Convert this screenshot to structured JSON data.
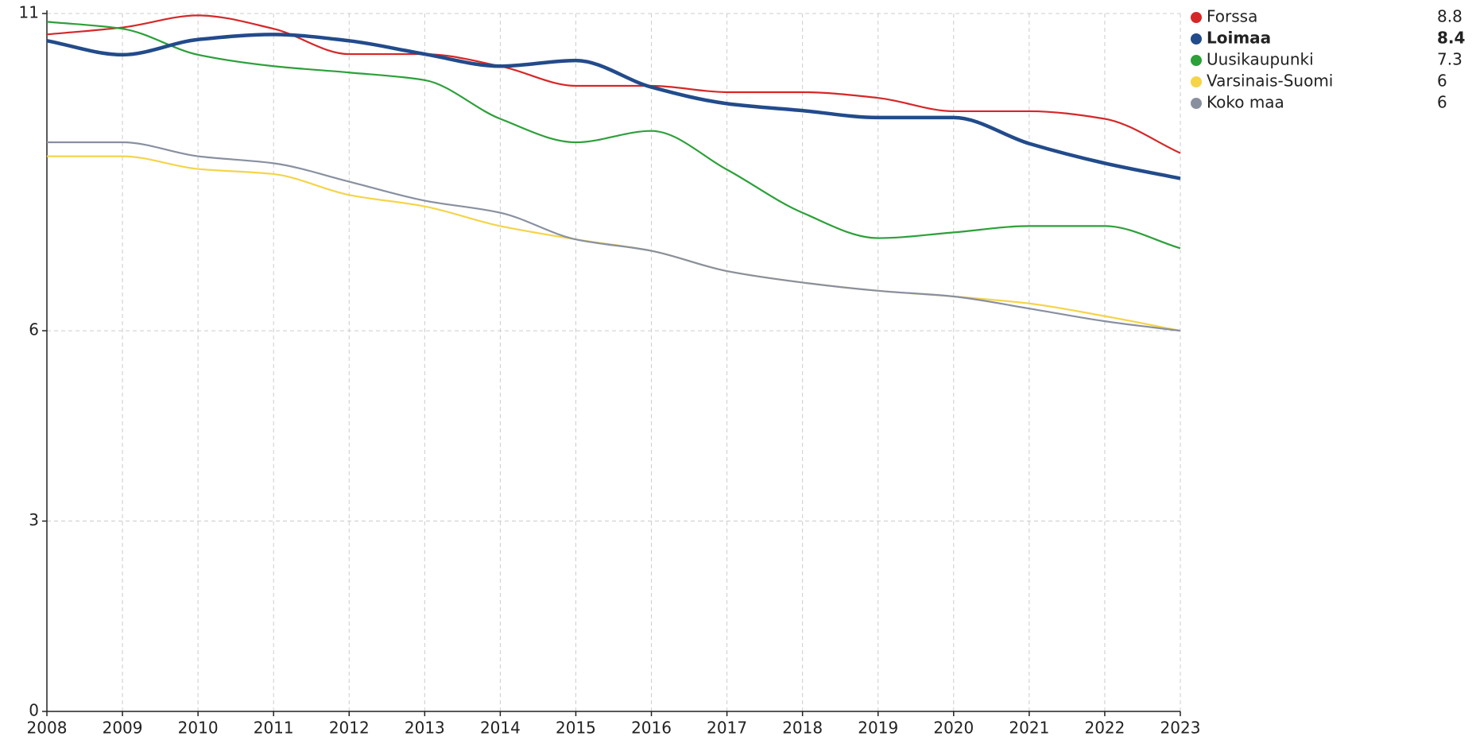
{
  "chart_data": {
    "type": "line",
    "x": [
      2008,
      2009,
      2010,
      2011,
      2012,
      2013,
      2014,
      2015,
      2016,
      2017,
      2018,
      2019,
      2020,
      2021,
      2022,
      2023
    ],
    "xlim": [
      2008,
      2023
    ],
    "xticks": [
      2008,
      2009,
      2010,
      2011,
      2012,
      2013,
      2014,
      2015,
      2016,
      2017,
      2018,
      2019,
      2020,
      2021,
      2022,
      2023
    ],
    "ylim": [
      0,
      11
    ],
    "yticks": [
      0,
      3,
      6,
      11
    ],
    "grid": true,
    "legend": "top-right",
    "series": [
      {
        "name": "Forssa",
        "color": "#d62728",
        "values": [
          10.67,
          10.78,
          10.97,
          10.76,
          10.36,
          10.36,
          10.17,
          9.86,
          9.86,
          9.76,
          9.76,
          9.67,
          9.46,
          9.46,
          9.34,
          8.8
        ]
      },
      {
        "name": "Loimaa",
        "color": "#224b8b",
        "highlighted": true,
        "values": [
          10.57,
          10.35,
          10.59,
          10.67,
          10.57,
          10.36,
          10.17,
          10.26,
          9.84,
          9.58,
          9.47,
          9.36,
          9.36,
          8.95,
          8.64,
          8.4
        ]
      },
      {
        "name": "Uusikaupunki",
        "color": "#2ca039",
        "values": [
          10.87,
          10.76,
          10.35,
          10.17,
          10.07,
          9.95,
          9.34,
          8.97,
          9.15,
          8.54,
          7.86,
          7.46,
          7.55,
          7.65,
          7.65,
          7.3
        ]
      },
      {
        "name": "Varsinais-Suomi",
        "color": "#f5d44a",
        "values": [
          8.75,
          8.75,
          8.55,
          8.47,
          8.14,
          7.96,
          7.65,
          7.44,
          7.26,
          6.94,
          6.76,
          6.63,
          6.54,
          6.43,
          6.23,
          6
        ]
      },
      {
        "name": "Koko maa",
        "color": "#8890a0",
        "values": [
          8.97,
          8.97,
          8.75,
          8.64,
          8.35,
          8.05,
          7.86,
          7.44,
          7.26,
          6.94,
          6.76,
          6.63,
          6.54,
          6.35,
          6.15,
          6
        ]
      }
    ]
  }
}
